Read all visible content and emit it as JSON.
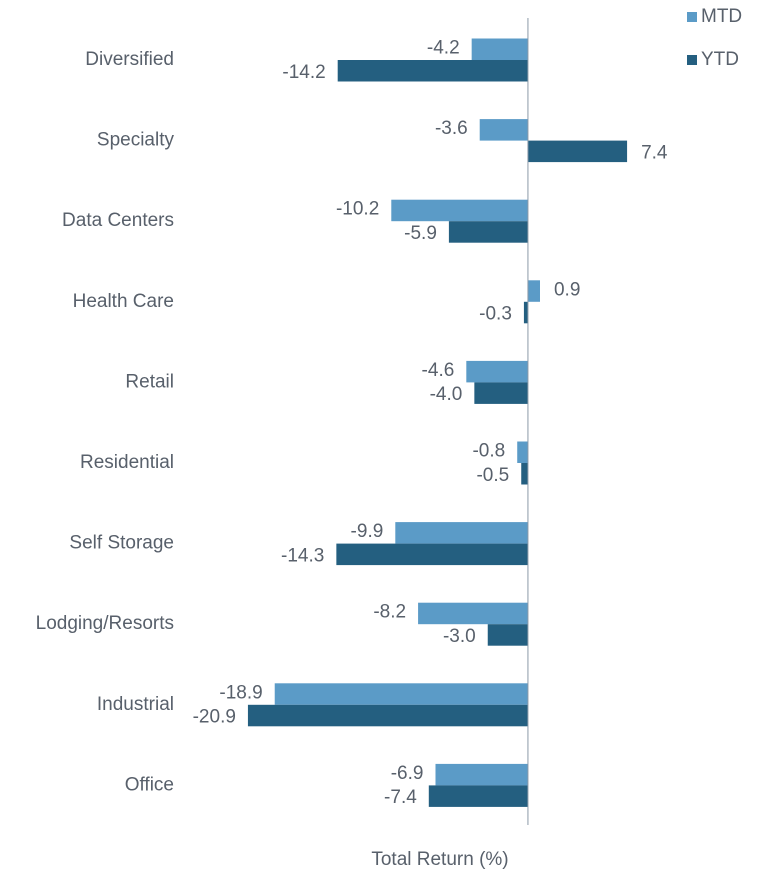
{
  "chart_data": {
    "type": "hbar",
    "categories": [
      "Diversified",
      "Specialty",
      "Data Centers",
      "Health Care",
      "Retail",
      "Residential",
      "Self Storage",
      "Lodging/Resorts",
      "Industrial",
      "Office"
    ],
    "series": [
      {
        "name": "MTD",
        "color": "#5b9bc7",
        "values": [
          -4.2,
          -3.6,
          -10.2,
          0.9,
          -4.6,
          -0.8,
          -9.9,
          -8.2,
          -18.9,
          -6.9
        ],
        "value_labels": [
          "-4.2",
          "-3.6",
          "-10.2",
          "0.9",
          "-4.6",
          "-0.8",
          "-9.9",
          "-8.2",
          "-18.9",
          "-6.9"
        ]
      },
      {
        "name": "YTD",
        "color": "#245f80",
        "values": [
          -14.2,
          7.4,
          -5.9,
          -0.3,
          -4.0,
          -0.5,
          -14.3,
          -3.0,
          -20.9,
          -7.4
        ],
        "value_labels": [
          "-14.2",
          "7.4",
          "-5.9",
          "-0.3",
          "-4.0",
          "-0.5",
          "-14.3",
          "-3.0",
          "-20.9",
          "-7.4"
        ]
      }
    ],
    "xlabel": "Total Return (%)",
    "xlim": [
      -25,
      16.5
    ],
    "legend": "top-right"
  }
}
